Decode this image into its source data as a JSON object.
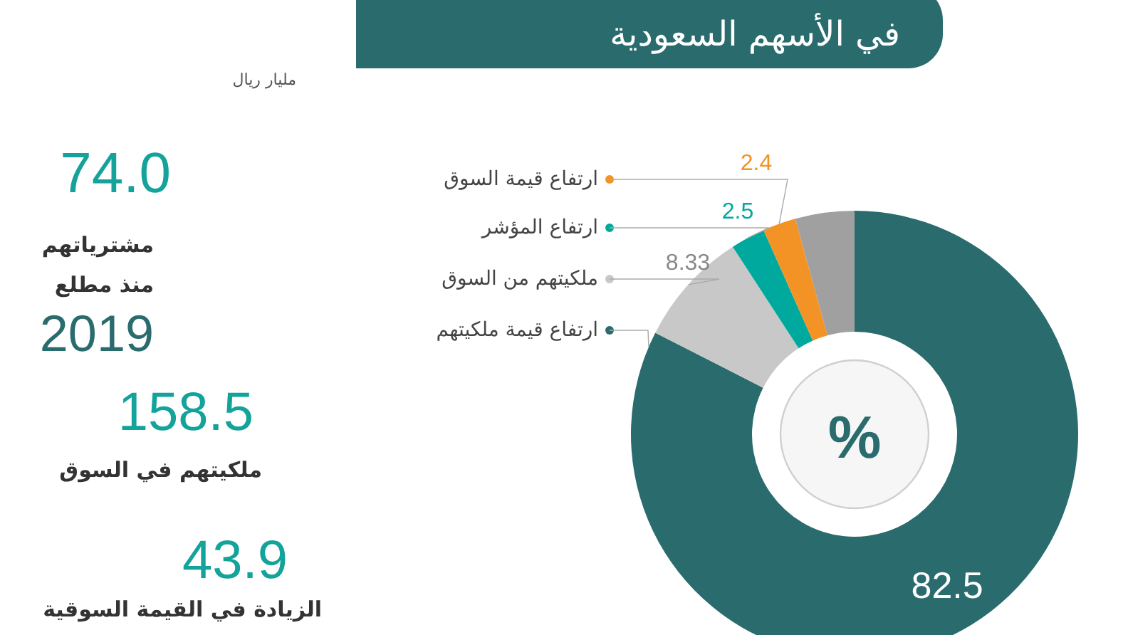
{
  "chart_data": [
    {
      "type": "donut",
      "title": "في الأسهم السعودية",
      "categories": [
        "ارتفاع قيمة ملكيتهم",
        "ملكيتهم من السوق",
        "ارتفاع المؤشر",
        "ارتفاع قيمة السوق",
        null
      ],
      "values": [
        82.5,
        8.33,
        2.5,
        2.4,
        4.27
      ],
      "colors": [
        "#2a6b6e",
        "#c8c8c8",
        "#00a99d",
        "#f39325",
        "#a0a0a0"
      ],
      "value_labels": [
        "82.5",
        "8.33",
        "2.5",
        "2.4",
        null
      ],
      "legend": "left",
      "annotations": [
        "%"
      ]
    },
    {
      "type": "other",
      "title": "مليار ريال",
      "annotations": [
        "74.0",
        "مشترياتهم",
        "منذ مطلع",
        "2019",
        "158.5",
        "ملكيتهم في السوق",
        "43.9",
        "الزيادة في القيمة السوقية"
      ]
    }
  ]
}
